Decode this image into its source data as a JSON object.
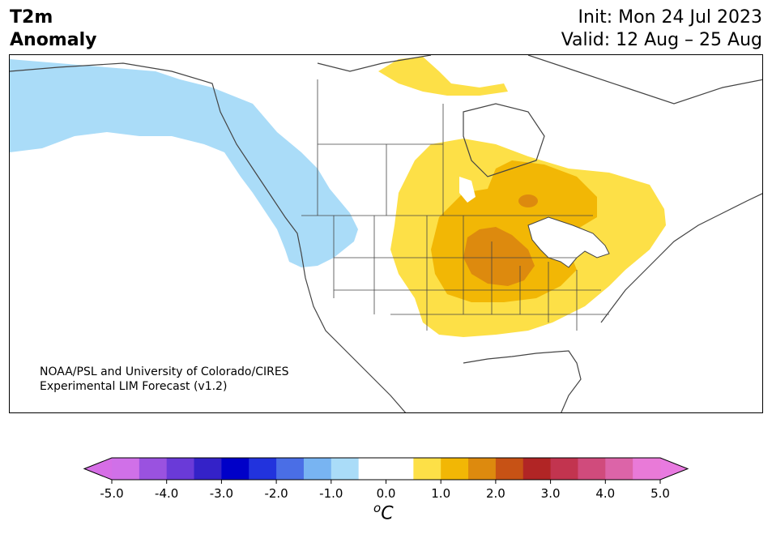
{
  "title": {
    "variable": "T2m",
    "field": "Anomaly",
    "init": "Init: Mon 24 Jul 2023",
    "valid": "Valid: 12 Aug – 25 Aug"
  },
  "credit": {
    "line1": "NOAA/PSL and University of Colorado/CIRES",
    "line2": "Experimental LIM Forecast (v1.2)"
  },
  "colorbar": {
    "unit_base": "C",
    "unit_super": "o",
    "ticks": [
      "-5.0",
      "-4.0",
      "-3.0",
      "-2.0",
      "-1.0",
      "0.0",
      "1.0",
      "2.0",
      "3.0",
      "4.0",
      "5.0"
    ],
    "colors": [
      "#d070e8",
      "#9a52e0",
      "#6a3ad8",
      "#3422c8",
      "#0000c8",
      "#2233dd",
      "#4a6ee6",
      "#78b4f2",
      "#aadcf8",
      "#ffffff",
      "#ffffff",
      "#fde047",
      "#f2b705",
      "#dd8a0e",
      "#c75215",
      "#b12525",
      "#c2344f",
      "#d04b7c",
      "#dc64a8",
      "#e97ad8"
    ],
    "extend_min_color": "#d66ee6",
    "extend_max_color": "#e87ae0"
  },
  "map": {
    "region": "North America",
    "regions": [
      {
        "name": "Alaska / NW Canada cool anomaly",
        "category": "-1.0 to -0.5",
        "color": "#aadcf8"
      },
      {
        "name": "Central US / Great Lakes warm",
        "category": "0.5 to 1.0",
        "color": "#fde047"
      },
      {
        "name": "Upper Midwest warm core",
        "category": "1.0 to 1.5",
        "color": "#f2b705"
      },
      {
        "name": "Iowa / Nebraska warm max",
        "category": "1.5 to 2.0",
        "color": "#dd8a0e"
      },
      {
        "name": "Northern Hudson area warm",
        "category": "0.5 to 1.0",
        "color": "#fde047"
      }
    ]
  }
}
